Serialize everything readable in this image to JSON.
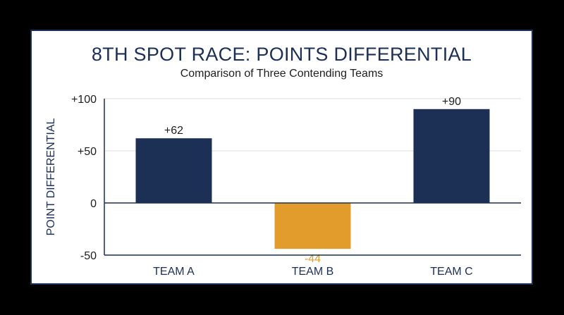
{
  "chart_data": {
    "type": "bar",
    "title": "8TH SPOT RACE: POINTS DIFFERENTIAL",
    "subtitle": "Comparison of Three Contending Teams",
    "ylabel": "POINT DIFFERENTIAL",
    "xlabel": "",
    "categories": [
      "TEAM A",
      "TEAM B",
      "TEAM C"
    ],
    "values": [
      62,
      -44,
      90
    ],
    "data_labels": [
      "+62",
      "-44",
      "+90"
    ],
    "bar_colors": [
      "#1c2f55",
      "#e19c2c",
      "#1c2f55"
    ],
    "label_colors": [
      "#1e1e1e",
      "#e19c2c",
      "#1e1e1e"
    ],
    "ylim": [
      -50,
      100
    ],
    "yticks": [
      {
        "value": 100,
        "label": "+100"
      },
      {
        "value": 50,
        "label": "+50"
      },
      {
        "value": 0,
        "label": "0"
      },
      {
        "value": -50,
        "label": "-50"
      }
    ],
    "grid": true
  },
  "colors": {
    "navy": "#1c2f55",
    "gold": "#e19c2c",
    "grid": "#d9dce2"
  }
}
